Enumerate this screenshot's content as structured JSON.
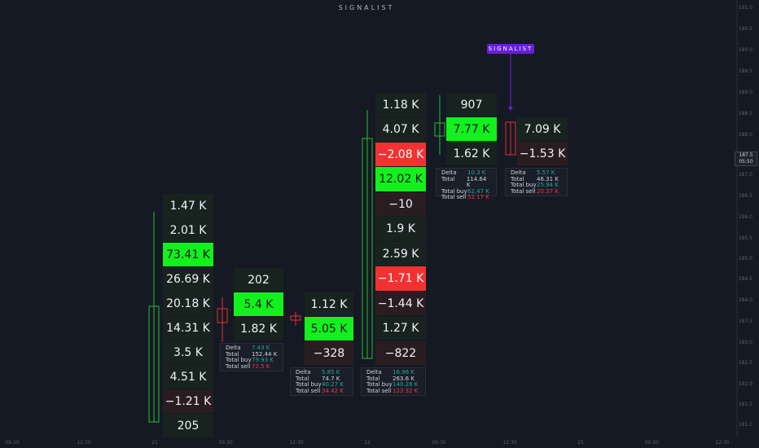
{
  "title": "SIGNALIST",
  "badge": "SIGNALIST",
  "price_axis": [
    "191.0",
    "190.5",
    "190.0",
    "189.5",
    "189.0",
    "188.5",
    "188.0",
    "187.0",
    "186.5",
    "186.0",
    "185.5",
    "185.0",
    "184.5",
    "184.0",
    "183.5",
    "183.0",
    "182.5",
    "182.0",
    "181.5",
    "181.0"
  ],
  "current_price": {
    "price": "187.5",
    "time": "05:50"
  },
  "time_axis": [
    "09:30",
    "12:30",
    "21",
    "09:30",
    "12:30",
    "22",
    "09:30",
    "12:30",
    "25",
    "09:30",
    "12:30"
  ],
  "columns": [
    {
      "cells": [
        {
          "text": "1.47 K",
          "style": "neutral"
        },
        {
          "text": "2.01 K",
          "style": "neutral"
        },
        {
          "text": "73.41 K",
          "style": "buy"
        },
        {
          "text": "26.69 K",
          "style": "neutral"
        },
        {
          "text": "20.18 K",
          "style": "neutral"
        },
        {
          "text": "14.31 K",
          "style": "neutral"
        },
        {
          "text": "3.5 K",
          "style": "neutral"
        },
        {
          "text": "4.51 K",
          "style": "neutral"
        },
        {
          "text": "−1.21 K",
          "style": "neg"
        },
        {
          "text": "205",
          "style": "neutral"
        }
      ]
    },
    {
      "cells": [
        {
          "text": "202",
          "style": "neutral"
        },
        {
          "text": "5.4 K",
          "style": "buy"
        },
        {
          "text": "1.82 K",
          "style": "neutral"
        }
      ],
      "summary": [
        [
          "Delta",
          "7.43 K"
        ],
        [
          "Total",
          "152.44 K"
        ],
        [
          "Total buy",
          "79.93 K"
        ],
        [
          "Total sell",
          "72.5 K"
        ]
      ]
    },
    {
      "cells": [
        {
          "text": "1.12 K",
          "style": "neutral"
        },
        {
          "text": "5.05 K",
          "style": "buy"
        },
        {
          "text": "−328",
          "style": "neg"
        }
      ],
      "summary": [
        [
          "Delta",
          "5.85 K"
        ],
        [
          "Total",
          "74.7 K"
        ],
        [
          "Total buy",
          "40.27 K"
        ],
        [
          "Total sell",
          "34.42 K"
        ]
      ]
    },
    {
      "cells": [
        {
          "text": "1.18 K",
          "style": "neutral"
        },
        {
          "text": "4.07 K",
          "style": "neutral"
        },
        {
          "text": "−2.08 K",
          "style": "sell"
        },
        {
          "text": "12.02 K",
          "style": "buy"
        },
        {
          "text": "−10",
          "style": "neg"
        },
        {
          "text": "1.9 K",
          "style": "neutral"
        },
        {
          "text": "2.59 K",
          "style": "neutral"
        },
        {
          "text": "−1.71 K",
          "style": "sell"
        },
        {
          "text": "−1.44 K",
          "style": "neg"
        },
        {
          "text": "1.27 K",
          "style": "neutral"
        },
        {
          "text": "−822",
          "style": "neg"
        }
      ],
      "summary": [
        [
          "Delta",
          "16.96 K"
        ],
        [
          "Total",
          "263.6 K"
        ],
        [
          "Total buy",
          "140.28 K"
        ],
        [
          "Total sell",
          "123.32 K"
        ]
      ]
    },
    {
      "cells": [
        {
          "text": "907",
          "style": "neutral"
        },
        {
          "text": "7.77 K",
          "style": "buy"
        },
        {
          "text": "1.62 K",
          "style": "neutral"
        }
      ],
      "summary": [
        [
          "Delta",
          "10.3 K"
        ],
        [
          "Total",
          "114.64 K"
        ],
        [
          "Total buy",
          "62.47 K"
        ],
        [
          "Total sell",
          "52.17 K"
        ]
      ]
    },
    {
      "cells": [
        {
          "text": "7.09 K",
          "style": "neutral"
        },
        {
          "text": "−1.53 K",
          "style": "neg"
        }
      ],
      "summary": [
        [
          "Delta",
          "5.57 K"
        ],
        [
          "Total",
          "46.31 K"
        ],
        [
          "Total buy",
          "25.94 K"
        ],
        [
          "Total sell",
          "20.37 K"
        ]
      ]
    }
  ]
}
